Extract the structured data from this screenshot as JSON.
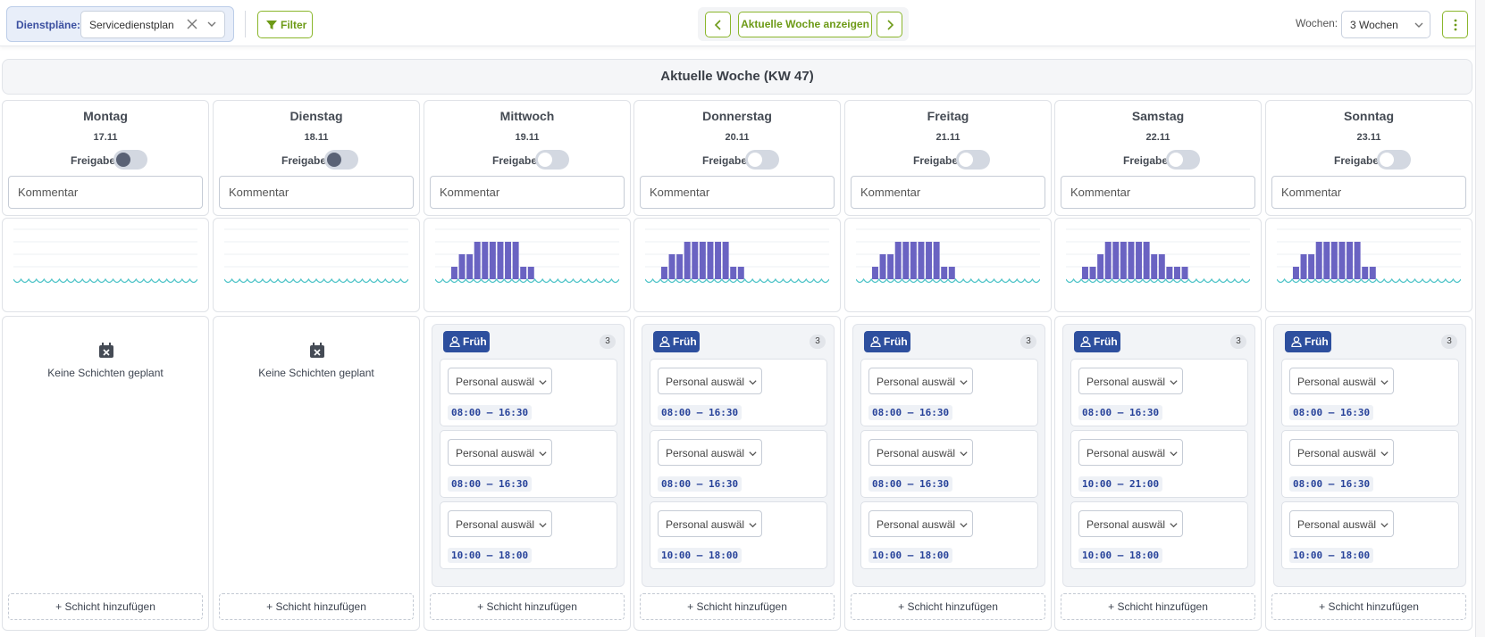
{
  "toolbar": {
    "plans_label": "Dienstpläne:",
    "plan_value": "Servicedienstplan",
    "filter_label": "Filter",
    "current_week_label": "Aktuelle Woche anzeigen",
    "weeks_label": "Wochen:",
    "weeks_value": "3 Wochen"
  },
  "week": {
    "title": "Aktuelle Woche (KW 47)"
  },
  "labels": {
    "freigabe": "Freigabe",
    "comment_placeholder": "Kommentar",
    "no_shifts": "Keine Schichten geplant",
    "add_shift": "+ Schicht hinzufügen",
    "shift_name": "Früh",
    "personal_placeholder": "Personal auswäl"
  },
  "days": [
    {
      "name": "Montag",
      "date": "17.11",
      "toggle_style": "dark",
      "bars": [],
      "shift_count": null,
      "times": []
    },
    {
      "name": "Dienstag",
      "date": "18.11",
      "toggle_style": "dark",
      "bars": [],
      "shift_count": null,
      "times": []
    },
    {
      "name": "Mittwoch",
      "date": "19.11",
      "toggle_style": "light",
      "bars": [
        0,
        0,
        1,
        2,
        2,
        3,
        3,
        3,
        3,
        3,
        3,
        1,
        1,
        0,
        0,
        0,
        0,
        0,
        0,
        0,
        0,
        0,
        0,
        0
      ],
      "shift_count": "3",
      "times": [
        "08:00 – 16:30",
        "08:00 – 16:30",
        "10:00 – 18:00"
      ]
    },
    {
      "name": "Donnerstag",
      "date": "20.11",
      "toggle_style": "light",
      "bars": [
        0,
        0,
        1,
        2,
        2,
        3,
        3,
        3,
        3,
        3,
        3,
        1,
        1,
        0,
        0,
        0,
        0,
        0,
        0,
        0,
        0,
        0,
        0,
        0
      ],
      "shift_count": "3",
      "times": [
        "08:00 – 16:30",
        "08:00 – 16:30",
        "10:00 – 18:00"
      ]
    },
    {
      "name": "Freitag",
      "date": "21.11",
      "toggle_style": "light",
      "bars": [
        0,
        0,
        1,
        2,
        2,
        3,
        3,
        3,
        3,
        3,
        3,
        1,
        1,
        0,
        0,
        0,
        0,
        0,
        0,
        0,
        0,
        0,
        0,
        0
      ],
      "shift_count": "3",
      "times": [
        "08:00 – 16:30",
        "08:00 – 16:30",
        "10:00 – 18:00"
      ]
    },
    {
      "name": "Samstag",
      "date": "22.11",
      "toggle_style": "light",
      "bars": [
        0,
        0,
        1,
        1,
        2,
        3,
        3,
        3,
        3,
        3,
        3,
        2,
        2,
        1,
        1,
        1,
        0,
        0,
        0,
        0,
        0,
        0,
        0,
        0
      ],
      "shift_count": "3",
      "times": [
        "08:00 – 16:30",
        "10:00 – 21:00",
        "10:00 – 18:00"
      ]
    },
    {
      "name": "Sonntag",
      "date": "23.11",
      "toggle_style": "light",
      "bars": [
        0,
        0,
        1,
        2,
        2,
        3,
        3,
        3,
        3,
        3,
        3,
        1,
        1,
        0,
        0,
        0,
        0,
        0,
        0,
        0,
        0,
        0,
        0,
        0
      ],
      "shift_count": "3",
      "times": [
        "08:00 – 16:30",
        "08:00 – 16:30",
        "10:00 – 18:00"
      ]
    }
  ],
  "colors": {
    "accent_green": "#8ab62b",
    "shift_blue": "#2d4f9e",
    "bar_purple": "#6a63c2",
    "curve_teal": "#52c5c9"
  }
}
